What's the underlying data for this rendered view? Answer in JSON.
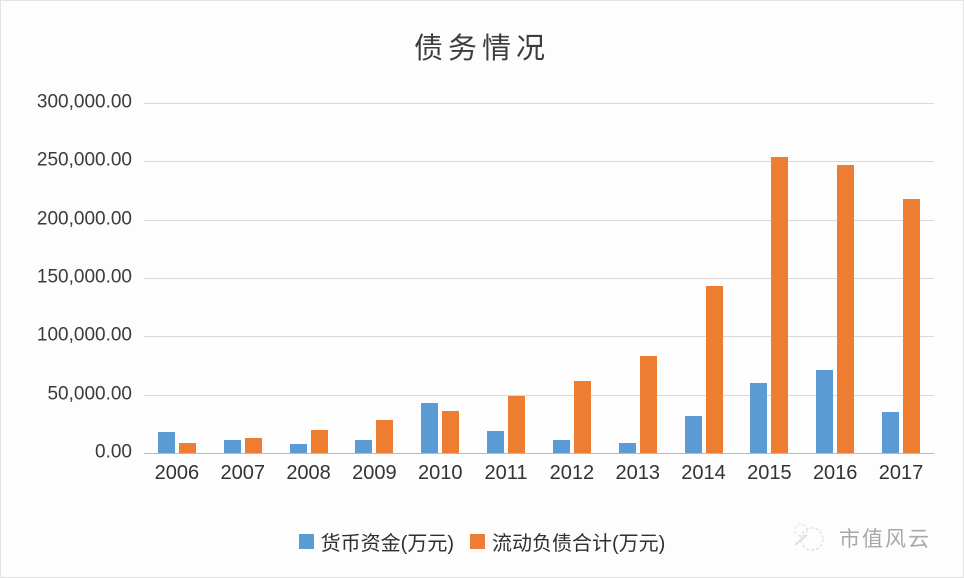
{
  "chart_data": {
    "type": "bar",
    "title": "债务情况",
    "categories": [
      "2006",
      "2007",
      "2008",
      "2009",
      "2010",
      "2011",
      "2012",
      "2013",
      "2014",
      "2015",
      "2016",
      "2017"
    ],
    "series": [
      {
        "name": "货币资金(万元)",
        "color": "#5B9BD5",
        "values": [
          18000,
          11000,
          7500,
          11000,
          43000,
          19000,
          11500,
          8500,
          32000,
          60000,
          71000,
          35000
        ]
      },
      {
        "name": "流动负债合计(万元)",
        "color": "#ED7D31",
        "values": [
          9000,
          13000,
          20000,
          28000,
          36000,
          49000,
          62000,
          83000,
          143000,
          254000,
          247000,
          218000
        ]
      }
    ],
    "ylim": [
      0,
      300000
    ],
    "ytick_step": 50000,
    "yticks_labels": [
      "300,000.00",
      "250,000.00",
      "200,000.00",
      "150,000.00",
      "100,000.00",
      "50,000.00",
      "0.00"
    ],
    "xlabel": "",
    "ylabel": "",
    "grid": true,
    "legend_position": "bottom"
  },
  "watermark": {
    "text": "市值风云"
  },
  "colors": {
    "grid": "#d9d9d9",
    "axis": "#b9b9b9",
    "text": "#333333"
  }
}
